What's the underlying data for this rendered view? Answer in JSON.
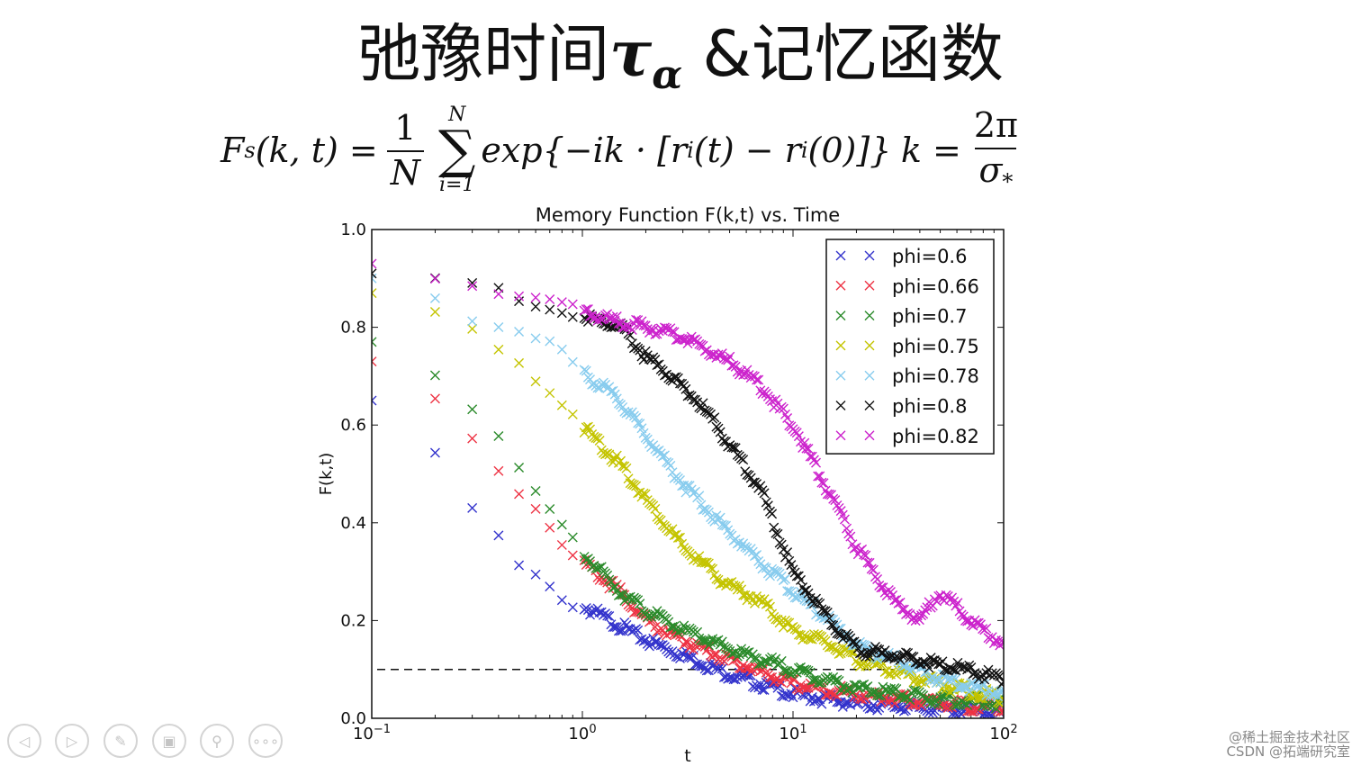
{
  "slide": {
    "title_prefix": "弛豫时间",
    "title_tau": "τ",
    "title_alpha": "α",
    "title_suffix": " &记忆函数"
  },
  "formula": {
    "lhs": "F",
    "lhs_sub": "s",
    "lhs_args": "(k, t) =",
    "frac_num": "1",
    "frac_den": "N",
    "sum_upper": "N",
    "sum_lower": "i=1",
    "body": "exp{−ik · [r",
    "body_sub1": "i",
    "body_mid": "(t) − r",
    "body_sub2": "i",
    "body_end": "(0)]}",
    "k_lhs": "k =",
    "k_num": "2π",
    "k_den": "σ",
    "k_den_sub": "*"
  },
  "chart_data": {
    "type": "scatter",
    "title": "Memory Function F(k,t) vs. Time",
    "xlabel": "t",
    "ylabel": "F(k,t)",
    "xscale": "log",
    "xlim": [
      0.1,
      100
    ],
    "ylim": [
      0.0,
      1.0
    ],
    "x_ticks": [
      0.1,
      1,
      10,
      100
    ],
    "x_tick_labels": [
      {
        "base": "10",
        "exp": "−1"
      },
      {
        "base": "10",
        "exp": "0"
      },
      {
        "base": "10",
        "exp": "1"
      },
      {
        "base": "10",
        "exp": "2"
      }
    ],
    "y_ticks": [
      0.0,
      0.2,
      0.4,
      0.6,
      0.8,
      1.0
    ],
    "y_tick_labels": [
      "0.0",
      "0.2",
      "0.4",
      "0.6",
      "0.8",
      "1.0"
    ],
    "marker": "x",
    "legend_position": "top-right",
    "reference_line": {
      "y": 0.1,
      "x_range": [
        0.1,
        30
      ],
      "style": "dashed"
    },
    "series": [
      {
        "name": "phi=0.6",
        "color": "#3333cc",
        "points": [
          [
            0.1,
            0.65
          ],
          [
            0.2,
            0.54
          ],
          [
            0.3,
            0.43
          ],
          [
            0.4,
            0.37
          ],
          [
            0.5,
            0.31
          ],
          [
            0.6,
            0.29
          ],
          [
            0.8,
            0.24
          ],
          [
            1,
            0.23
          ],
          [
            1.5,
            0.19
          ],
          [
            2,
            0.16
          ],
          [
            3,
            0.13
          ],
          [
            5,
            0.09
          ],
          [
            10,
            0.05
          ],
          [
            20,
            0.03
          ],
          [
            50,
            0.02
          ],
          [
            100,
            0.01
          ]
        ]
      },
      {
        "name": "phi=0.66",
        "color": "#ee3344",
        "points": [
          [
            0.1,
            0.73
          ],
          [
            0.2,
            0.655
          ],
          [
            0.3,
            0.575
          ],
          [
            0.4,
            0.51
          ],
          [
            0.5,
            0.465
          ],
          [
            0.6,
            0.43
          ],
          [
            0.8,
            0.36
          ],
          [
            1,
            0.32
          ],
          [
            1.5,
            0.26
          ],
          [
            2,
            0.2
          ],
          [
            3,
            0.16
          ],
          [
            5,
            0.12
          ],
          [
            10,
            0.07
          ],
          [
            20,
            0.05
          ],
          [
            50,
            0.03
          ],
          [
            100,
            0.02
          ]
        ]
      },
      {
        "name": "phi=0.7",
        "color": "#2a8a2a",
        "points": [
          [
            0.1,
            0.77
          ],
          [
            0.2,
            0.705
          ],
          [
            0.3,
            0.63
          ],
          [
            0.4,
            0.575
          ],
          [
            0.5,
            0.505
          ],
          [
            0.6,
            0.46
          ],
          [
            0.8,
            0.39
          ],
          [
            1,
            0.34
          ],
          [
            1.5,
            0.26
          ],
          [
            2,
            0.22
          ],
          [
            3,
            0.18
          ],
          [
            5,
            0.14
          ],
          [
            10,
            0.1
          ],
          [
            20,
            0.06
          ],
          [
            50,
            0.04
          ],
          [
            100,
            0.03
          ]
        ]
      },
      {
        "name": "phi=0.75",
        "color": "#c4c400",
        "points": [
          [
            0.1,
            0.87
          ],
          [
            0.2,
            0.83
          ],
          [
            0.3,
            0.795
          ],
          [
            0.4,
            0.755
          ],
          [
            0.5,
            0.73
          ],
          [
            0.6,
            0.69
          ],
          [
            0.8,
            0.65
          ],
          [
            1,
            0.6
          ],
          [
            1.5,
            0.52
          ],
          [
            2,
            0.45
          ],
          [
            3,
            0.35
          ],
          [
            5,
            0.27
          ],
          [
            7,
            0.24
          ],
          [
            10,
            0.18
          ],
          [
            15,
            0.15
          ],
          [
            20,
            0.12
          ],
          [
            50,
            0.07
          ],
          [
            100,
            0.04
          ]
        ]
      },
      {
        "name": "phi=0.78",
        "color": "#88ccee",
        "points": [
          [
            0.1,
            0.9
          ],
          [
            0.2,
            0.86
          ],
          [
            0.3,
            0.815
          ],
          [
            0.4,
            0.8
          ],
          [
            0.5,
            0.79
          ],
          [
            0.6,
            0.775
          ],
          [
            0.8,
            0.75
          ],
          [
            1,
            0.71
          ],
          [
            1.5,
            0.65
          ],
          [
            2,
            0.58
          ],
          [
            3,
            0.48
          ],
          [
            5,
            0.38
          ],
          [
            7,
            0.32
          ],
          [
            10,
            0.26
          ],
          [
            15,
            0.2
          ],
          [
            20,
            0.15
          ],
          [
            30,
            0.12
          ],
          [
            50,
            0.08
          ],
          [
            100,
            0.05
          ]
        ]
      },
      {
        "name": "phi=0.8",
        "color": "#111111",
        "points": [
          [
            0.1,
            0.91
          ],
          [
            0.2,
            0.9
          ],
          [
            0.3,
            0.89
          ],
          [
            0.4,
            0.875
          ],
          [
            0.5,
            0.86
          ],
          [
            0.6,
            0.85
          ],
          [
            0.8,
            0.83
          ],
          [
            1,
            0.82
          ],
          [
            1.5,
            0.8
          ],
          [
            2,
            0.74
          ],
          [
            3,
            0.68
          ],
          [
            4,
            0.62
          ],
          [
            5,
            0.56
          ],
          [
            7,
            0.47
          ],
          [
            10,
            0.3
          ],
          [
            15,
            0.2
          ],
          [
            20,
            0.14
          ],
          [
            30,
            0.13
          ],
          [
            50,
            0.11
          ],
          [
            100,
            0.08
          ]
        ]
      },
      {
        "name": "phi=0.82",
        "color": "#cc22cc",
        "points": [
          [
            0.1,
            0.93
          ],
          [
            0.2,
            0.9
          ],
          [
            0.3,
            0.89
          ],
          [
            0.4,
            0.875
          ],
          [
            0.5,
            0.865
          ],
          [
            0.6,
            0.86
          ],
          [
            0.8,
            0.85
          ],
          [
            1,
            0.83
          ],
          [
            1.5,
            0.81
          ],
          [
            2,
            0.8
          ],
          [
            3,
            0.78
          ],
          [
            5,
            0.73
          ],
          [
            7,
            0.68
          ],
          [
            10,
            0.6
          ],
          [
            15,
            0.46
          ],
          [
            20,
            0.35
          ],
          [
            30,
            0.24
          ],
          [
            40,
            0.2
          ],
          [
            50,
            0.26
          ],
          [
            70,
            0.2
          ],
          [
            100,
            0.15
          ]
        ]
      }
    ]
  },
  "nav": [
    {
      "name": "prev-slide-icon",
      "glyph": "◁"
    },
    {
      "name": "next-slide-icon",
      "glyph": "▷"
    },
    {
      "name": "pen-tool-icon",
      "glyph": "✎"
    },
    {
      "name": "slide-overview-icon",
      "glyph": "▣"
    },
    {
      "name": "zoom-icon",
      "glyph": "⚲"
    },
    {
      "name": "more-options-icon",
      "glyph": "∘∘∘"
    }
  ],
  "watermark": {
    "line1": "@稀土掘金技术社区",
    "line2": "CSDN @拓端研究室"
  }
}
